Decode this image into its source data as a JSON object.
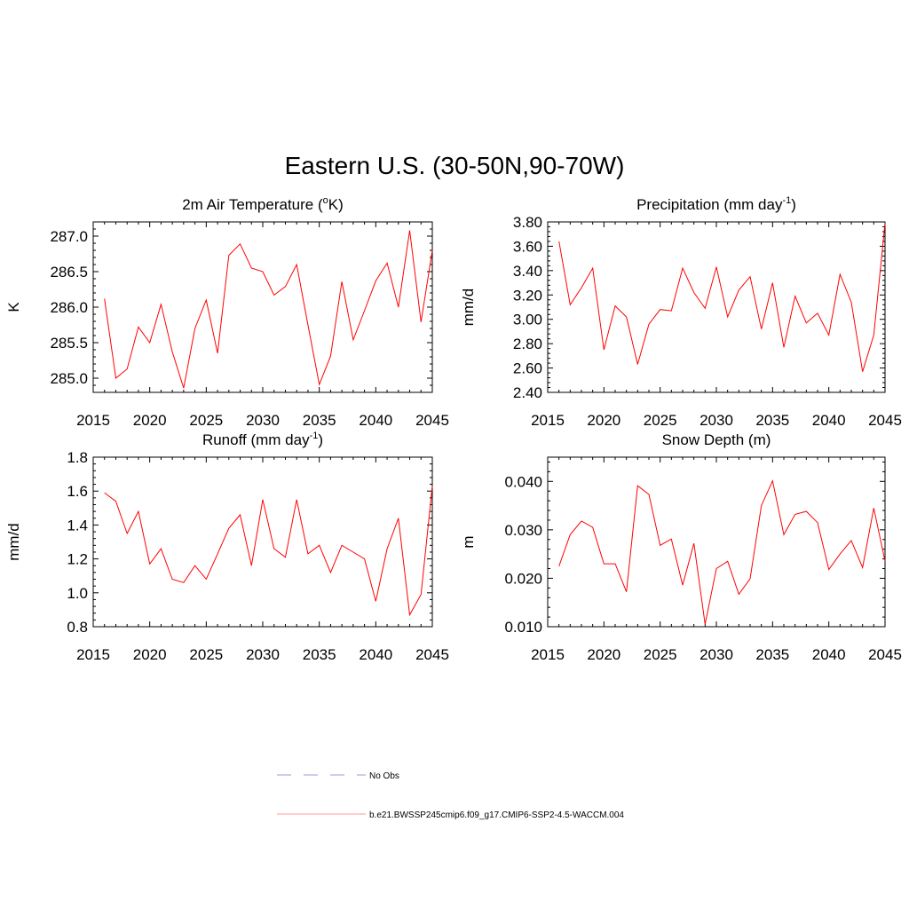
{
  "title": "Eastern U.S. (30-50N,90-70W)",
  "colors": {
    "model": "#ff0000",
    "obs": "#9999dd",
    "frame": "#000000"
  },
  "legend": {
    "entries": [
      {
        "label": "No Obs",
        "style": "dashed"
      },
      {
        "label": "b.e21.BWSSP245cmip6.f09_g17.CMIP6-SSP2-4.5-WACCM.004",
        "style": "solid"
      }
    ]
  },
  "chart_data": [
    {
      "type": "line",
      "title": "2m Air Temperature (",
      "title_sup": "o",
      "title_after": "K)",
      "ylabel": "K",
      "xlabel": "",
      "xlim": [
        2015,
        2045
      ],
      "ylim": [
        284.8,
        287.2
      ],
      "xticks": [
        2015,
        2020,
        2025,
        2030,
        2035,
        2040,
        2045
      ],
      "yticks": [
        285.0,
        285.5,
        286.0,
        286.5,
        287.0
      ],
      "ytick_labels": [
        "285.0",
        "285.5",
        "286.0",
        "286.5",
        "287.0"
      ],
      "series": [
        {
          "x": [
            2016,
            2017,
            2018,
            2019,
            2020,
            2021,
            2022,
            2023,
            2024,
            2025,
            2026,
            2027,
            2028,
            2029,
            2030,
            2031,
            2032,
            2033,
            2034,
            2035,
            2036,
            2037,
            2038,
            2039,
            2040,
            2041,
            2042,
            2043,
            2044,
            2045
          ],
          "values": [
            286.12,
            285.0,
            285.13,
            285.72,
            285.5,
            286.04,
            285.37,
            284.86,
            285.7,
            286.1,
            285.35,
            286.73,
            286.89,
            286.55,
            286.5,
            286.17,
            286.29,
            286.6,
            285.75,
            284.91,
            285.31,
            286.36,
            285.54,
            285.95,
            286.37,
            286.62,
            286.0,
            287.08,
            285.79,
            286.8
          ]
        }
      ]
    },
    {
      "type": "line",
      "title": "Precipitation (mm day",
      "title_sup": "-1",
      "title_after": ")",
      "ylabel": "mm/d",
      "xlabel": "",
      "xlim": [
        2015,
        2045
      ],
      "ylim": [
        2.4,
        3.8
      ],
      "xticks": [
        2015,
        2020,
        2025,
        2030,
        2035,
        2040,
        2045
      ],
      "yticks": [
        2.4,
        2.6,
        2.8,
        3.0,
        3.2,
        3.4,
        3.6,
        3.8
      ],
      "ytick_labels": [
        "2.40",
        "2.60",
        "2.80",
        "3.00",
        "3.20",
        "3.40",
        "3.60",
        "3.80"
      ],
      "series": [
        {
          "x": [
            2016,
            2017,
            2018,
            2019,
            2020,
            2021,
            2022,
            2023,
            2024,
            2025,
            2026,
            2027,
            2028,
            2029,
            2030,
            2031,
            2032,
            2033,
            2034,
            2035,
            2036,
            2037,
            2038,
            2039,
            2040,
            2041,
            2042,
            2043,
            2044,
            2045
          ],
          "values": [
            3.64,
            3.12,
            3.26,
            3.42,
            2.75,
            3.11,
            3.02,
            2.63,
            2.96,
            3.08,
            3.07,
            3.42,
            3.22,
            3.09,
            3.43,
            3.02,
            3.24,
            3.35,
            2.92,
            3.3,
            2.77,
            3.19,
            2.97,
            3.05,
            2.87,
            3.37,
            3.14,
            2.57,
            2.87,
            3.79
          ]
        }
      ]
    },
    {
      "type": "line",
      "title": "Runoff (mm day",
      "title_sup": "-1",
      "title_after": ")",
      "ylabel": "mm/d",
      "xlabel": "",
      "xlim": [
        2015,
        2045
      ],
      "ylim": [
        0.8,
        1.8
      ],
      "xticks": [
        2015,
        2020,
        2025,
        2030,
        2035,
        2040,
        2045
      ],
      "yticks": [
        0.8,
        1.0,
        1.2,
        1.4,
        1.6,
        1.8
      ],
      "ytick_labels": [
        "0.8",
        "1.0",
        "1.2",
        "1.4",
        "1.6",
        "1.8"
      ],
      "series": [
        {
          "x": [
            2016,
            2017,
            2018,
            2019,
            2020,
            2021,
            2022,
            2023,
            2024,
            2025,
            2026,
            2027,
            2028,
            2029,
            2030,
            2031,
            2032,
            2033,
            2034,
            2035,
            2036,
            2037,
            2038,
            2039,
            2040,
            2041,
            2042,
            2043,
            2044,
            2045
          ],
          "values": [
            1.59,
            1.54,
            1.35,
            1.48,
            1.17,
            1.26,
            1.08,
            1.06,
            1.16,
            1.08,
            1.23,
            1.38,
            1.46,
            1.16,
            1.55,
            1.26,
            1.21,
            1.55,
            1.23,
            1.28,
            1.12,
            1.28,
            1.24,
            1.2,
            0.95,
            1.26,
            1.44,
            0.87,
            0.99,
            1.63
          ]
        }
      ]
    },
    {
      "type": "line",
      "title": "Snow Depth (m)",
      "title_sup": "",
      "title_after": "",
      "ylabel": "m",
      "xlabel": "",
      "xlim": [
        2015,
        2045
      ],
      "ylim": [
        0.01,
        0.045
      ],
      "xticks": [
        2015,
        2020,
        2025,
        2030,
        2035,
        2040,
        2045
      ],
      "yticks": [
        0.01,
        0.02,
        0.03,
        0.04
      ],
      "ytick_labels": [
        "0.010",
        "0.020",
        "0.030",
        "0.040"
      ],
      "series": [
        {
          "x": [
            2016,
            2017,
            2018,
            2019,
            2020,
            2021,
            2022,
            2023,
            2024,
            2025,
            2026,
            2027,
            2028,
            2029,
            2030,
            2031,
            2032,
            2033,
            2034,
            2035,
            2036,
            2037,
            2038,
            2039,
            2040,
            2041,
            2042,
            2043,
            2044,
            2045
          ],
          "values": [
            0.0225,
            0.029,
            0.0318,
            0.0305,
            0.023,
            0.023,
            0.0172,
            0.0391,
            0.0373,
            0.0268,
            0.0281,
            0.0186,
            0.0272,
            0.0105,
            0.022,
            0.0235,
            0.0167,
            0.0199,
            0.035,
            0.0401,
            0.029,
            0.0332,
            0.0338,
            0.0315,
            0.0218,
            0.025,
            0.0278,
            0.0222,
            0.0345,
            0.0235
          ]
        }
      ]
    }
  ]
}
